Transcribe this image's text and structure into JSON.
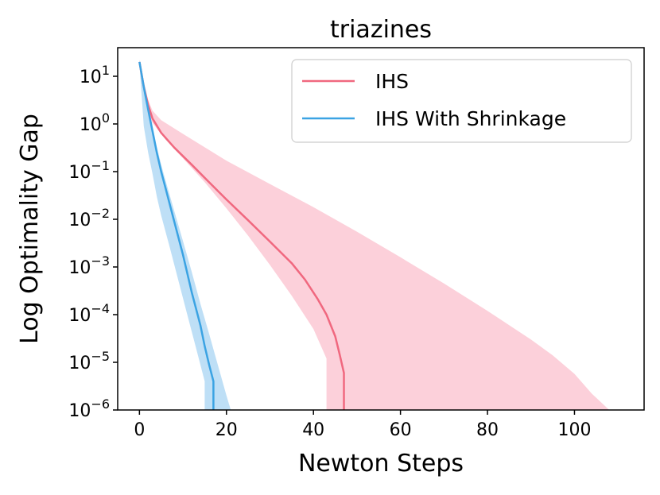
{
  "chart_data": {
    "type": "line",
    "title": "triazines",
    "xlabel": "Newton Steps",
    "ylabel": "Log Optimality Gap",
    "xlim": [
      -5,
      116
    ],
    "ylim_log10": [
      -6,
      1.6
    ],
    "y_scale": "log",
    "grid": false,
    "legend_position": "top-right",
    "x_ticks": [
      0,
      20,
      40,
      60,
      80,
      100
    ],
    "x_tick_labels": [
      "0",
      "20",
      "40",
      "60",
      "80",
      "100"
    ],
    "y_ticks": [
      {
        "exp": 1,
        "label_base": "10",
        "label_exp": "1"
      },
      {
        "exp": 0,
        "label_base": "10",
        "label_exp": "0"
      },
      {
        "exp": -1,
        "label_base": "10",
        "label_exp": "−1"
      },
      {
        "exp": -2,
        "label_base": "10",
        "label_exp": "−2"
      },
      {
        "exp": -3,
        "label_base": "10",
        "label_exp": "−3"
      },
      {
        "exp": -4,
        "label_base": "10",
        "label_exp": "−4"
      },
      {
        "exp": -5,
        "label_base": "10",
        "label_exp": "−5"
      },
      {
        "exp": -6,
        "label_base": "10",
        "label_exp": "−6"
      }
    ],
    "series": [
      {
        "name": "IHS",
        "color": "#f0687f",
        "band_color": "#fcd0da",
        "x": [
          0,
          1,
          2,
          3,
          5,
          8,
          12,
          16,
          20,
          25,
          30,
          35,
          38,
          41,
          43,
          45,
          46,
          47,
          47
        ],
        "y": [
          20,
          6,
          2.5,
          1.3,
          0.65,
          0.32,
          0.14,
          0.06,
          0.026,
          0.0095,
          0.0034,
          0.0012,
          0.00055,
          0.00021,
          0.0001,
          3.5e-05,
          1.5e-05,
          6e-06,
          1e-06
        ],
        "band_x": [
          0,
          1,
          2,
          3,
          5,
          10,
          20,
          30,
          40,
          50,
          60,
          70,
          80,
          90,
          95,
          100,
          104,
          108,
          108,
          43,
          43,
          40,
          35,
          30,
          25,
          20,
          15,
          10,
          6,
          3,
          2,
          1,
          0
        ],
        "band_y": [
          22,
          8,
          3.2,
          1.9,
          1.2,
          0.62,
          0.17,
          0.055,
          0.018,
          0.0055,
          0.0016,
          0.00045,
          0.00012,
          3e-05,
          1.4e-05,
          5.7e-06,
          2.2e-06,
          1e-06,
          1e-06,
          1e-06,
          1.2e-05,
          5e-05,
          0.00025,
          0.0011,
          0.0045,
          0.017,
          0.06,
          0.19,
          0.47,
          1.05,
          1.8,
          4,
          18
        ]
      },
      {
        "name": "IHS With Shrinkage",
        "color": "#3ba3e3",
        "band_color": "#bedff6",
        "x": [
          0,
          1,
          2,
          3,
          4,
          5,
          6,
          8,
          10,
          12,
          14,
          15,
          16,
          17,
          17
        ],
        "y": [
          20,
          6,
          2,
          0.7,
          0.25,
          0.1,
          0.045,
          0.009,
          0.0018,
          0.0003,
          6e-05,
          2.2e-05,
          9e-06,
          4e-06,
          1e-06
        ],
        "band_x": [
          0,
          1,
          2,
          3,
          4,
          5,
          6,
          8,
          10,
          12,
          14,
          16,
          18,
          20,
          21,
          21,
          15,
          15,
          13,
          11,
          9,
          7,
          5,
          4,
          3,
          2,
          1,
          0
        ],
        "band_y": [
          22,
          8,
          2.5,
          0.9,
          0.33,
          0.14,
          0.065,
          0.015,
          0.0035,
          0.0008,
          0.00017,
          4e-05,
          9e-06,
          2e-06,
          1e-06,
          1e-06,
          1e-06,
          4e-06,
          2e-05,
          0.0001,
          0.0005,
          0.0025,
          0.012,
          0.03,
          0.09,
          0.25,
          0.9,
          18
        ]
      }
    ]
  }
}
